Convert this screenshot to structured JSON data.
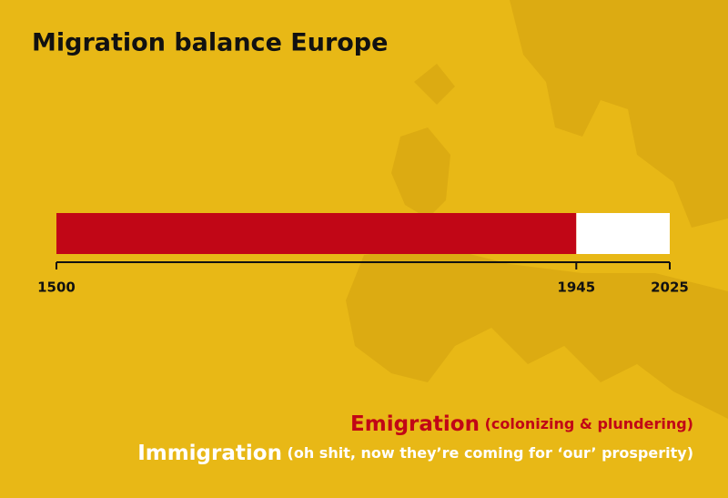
{
  "chart_data": {
    "type": "timeline",
    "title": "Migration balance Europe",
    "series": [
      {
        "name": "Emigration",
        "detail": "(colonizing & plundering)",
        "color": "#c10616",
        "range": [
          1500,
          1945
        ]
      },
      {
        "name": "Immigration",
        "detail": "(oh shit, now they’re coming for ‘our’ prosperity)",
        "color": "#ffffff",
        "range": [
          1945,
          2025
        ]
      }
    ],
    "xlim": [
      1500,
      2025
    ],
    "xticks": [
      1500,
      1945,
      2025
    ]
  }
}
